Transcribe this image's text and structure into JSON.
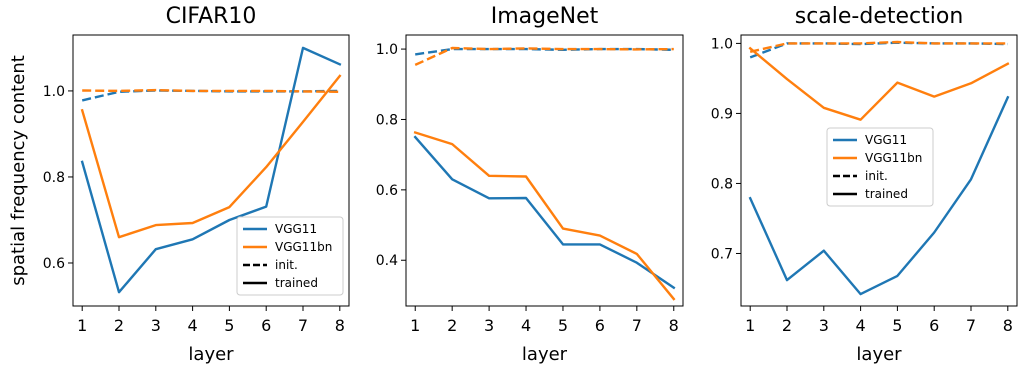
{
  "chart_data": [
    {
      "type": "line",
      "title": "CIFAR10",
      "xlabel": "layer",
      "ylabel": "spatial frequency content",
      "x": [
        1,
        2,
        3,
        4,
        5,
        6,
        7,
        8
      ],
      "xlim": [
        0.75,
        8.25
      ],
      "ylim": [
        0.5,
        1.13
      ],
      "yticks": [
        0.6,
        0.8,
        1.0
      ],
      "yticklabels": [
        "0.6",
        "0.8",
        "1.0"
      ],
      "legend_loc": "lower-right",
      "series": [
        {
          "name": "VGG11",
          "variant": "init.",
          "color": "#1f77b4",
          "dashed": true,
          "values": [
            0.978,
            0.998,
            1.001,
            1.0,
            0.999,
            0.999,
            0.999,
            1.0
          ]
        },
        {
          "name": "VGG11bn",
          "variant": "init.",
          "color": "#ff7f0e",
          "dashed": true,
          "values": [
            1.001,
            1.0,
            1.002,
            1.0,
            1.0,
            1.0,
            0.999,
            0.998
          ]
        },
        {
          "name": "VGG11",
          "variant": "trained",
          "color": "#1f77b4",
          "dashed": false,
          "values": [
            0.835,
            0.532,
            0.632,
            0.655,
            0.7,
            0.731,
            1.1,
            1.062
          ]
        },
        {
          "name": "VGG11bn",
          "variant": "trained",
          "color": "#ff7f0e",
          "dashed": false,
          "values": [
            0.955,
            0.66,
            0.688,
            0.693,
            0.73,
            0.823,
            0.928,
            1.035
          ]
        }
      ],
      "legend": [
        {
          "label": "VGG11",
          "color": "#1f77b4",
          "dashed": false
        },
        {
          "label": "VGG11bn",
          "color": "#ff7f0e",
          "dashed": false
        },
        {
          "label": "init.",
          "color": "#000000",
          "dashed": true
        },
        {
          "label": "trained",
          "color": "#000000",
          "dashed": false
        }
      ]
    },
    {
      "type": "line",
      "title": "ImageNet",
      "xlabel": "layer",
      "ylabel": "",
      "x": [
        1,
        2,
        3,
        4,
        5,
        6,
        7,
        8
      ],
      "xlim": [
        0.75,
        8.25
      ],
      "ylim": [
        0.27,
        1.04
      ],
      "yticks": [
        0.4,
        0.6,
        0.8,
        1.0
      ],
      "yticklabels": [
        "0.4",
        "0.6",
        "0.8",
        "1.0"
      ],
      "legend_loc": "none",
      "series": [
        {
          "name": "VGG11",
          "variant": "init.",
          "color": "#1f77b4",
          "dashed": true,
          "values": [
            0.985,
            1.0,
            1.0,
            1.0,
            0.998,
            1.0,
            1.0,
            0.998
          ]
        },
        {
          "name": "VGG11bn",
          "variant": "init.",
          "color": "#ff7f0e",
          "dashed": true,
          "values": [
            0.955,
            1.003,
            1.0,
            1.002,
            1.0,
            1.0,
            0.999,
            1.0
          ]
        },
        {
          "name": "VGG11",
          "variant": "trained",
          "color": "#1f77b4",
          "dashed": false,
          "values": [
            0.75,
            0.63,
            0.576,
            0.577,
            0.445,
            0.445,
            0.393,
            0.322
          ]
        },
        {
          "name": "VGG11bn",
          "variant": "trained",
          "color": "#ff7f0e",
          "dashed": false,
          "values": [
            0.763,
            0.73,
            0.64,
            0.638,
            0.49,
            0.47,
            0.418,
            0.29
          ]
        }
      ],
      "legend": []
    },
    {
      "type": "line",
      "title": "scale-detection",
      "xlabel": "layer",
      "ylabel": "",
      "x": [
        1,
        2,
        3,
        4,
        5,
        6,
        7,
        8
      ],
      "xlim": [
        0.75,
        8.25
      ],
      "ylim": [
        0.625,
        1.012
      ],
      "yticks": [
        0.7,
        0.8,
        0.9,
        1.0
      ],
      "yticklabels": [
        "0.7",
        "0.8",
        "0.9",
        "1.0"
      ],
      "legend_loc": "center-right",
      "series": [
        {
          "name": "VGG11",
          "variant": "init.",
          "color": "#1f77b4",
          "dashed": true,
          "values": [
            0.98,
            1.0,
            1.0,
            0.999,
            1.001,
            1.0,
            1.0,
            0.999
          ]
        },
        {
          "name": "VGG11bn",
          "variant": "init.",
          "color": "#ff7f0e",
          "dashed": true,
          "values": [
            0.988,
            1.0,
            1.0,
            1.0,
            1.002,
            1.0,
            1.0,
            1.0
          ]
        },
        {
          "name": "VGG11",
          "variant": "trained",
          "color": "#1f77b4",
          "dashed": false,
          "values": [
            0.779,
            0.662,
            0.704,
            0.642,
            0.668,
            0.73,
            0.806,
            0.923
          ]
        },
        {
          "name": "VGG11bn",
          "variant": "trained",
          "color": "#ff7f0e",
          "dashed": false,
          "values": [
            0.993,
            0.949,
            0.908,
            0.891,
            0.944,
            0.924,
            0.943,
            0.971
          ]
        }
      ],
      "legend": [
        {
          "label": "VGG11",
          "color": "#1f77b4",
          "dashed": false
        },
        {
          "label": "VGG11bn",
          "color": "#ff7f0e",
          "dashed": false
        },
        {
          "label": "init.",
          "color": "#000000",
          "dashed": true
        },
        {
          "label": "trained",
          "color": "#000000",
          "dashed": false
        }
      ]
    }
  ]
}
